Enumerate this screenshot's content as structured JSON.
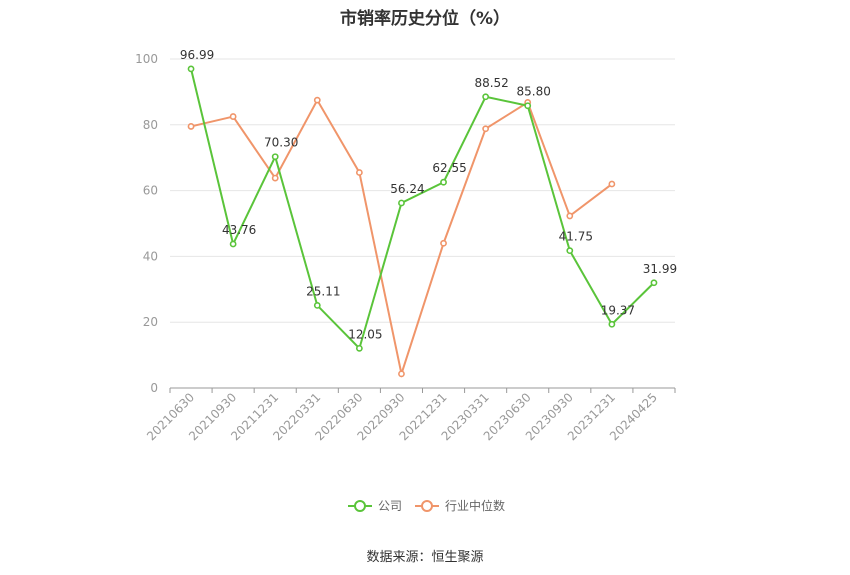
{
  "title": "市销率历史分位（%）",
  "source": "数据来源：恒生聚源",
  "chart_data": {
    "type": "line",
    "x": [
      "20210630",
      "20210930",
      "20211231",
      "20220331",
      "20220630",
      "20220930",
      "20221231",
      "20230331",
      "20230630",
      "20230930",
      "20231231",
      "20240425"
    ],
    "ylim": [
      0,
      100
    ],
    "yticks": [
      0,
      20,
      40,
      60,
      80,
      100
    ],
    "grid": true,
    "legend_position": "bottom-center",
    "series": [
      {
        "name": "公司",
        "color": "#5ac43a",
        "values": [
          96.99,
          43.76,
          70.3,
          25.11,
          12.05,
          56.24,
          62.55,
          88.52,
          85.8,
          41.75,
          19.37,
          31.99
        ],
        "labels": [
          "96.99",
          "43.76",
          "70.30",
          "25.11",
          "12.05",
          "56.24",
          "62.55",
          "88.52",
          "85.80",
          "41.75",
          "19.37",
          "31.99"
        ]
      },
      {
        "name": "行业中位数",
        "color": "#f0956a",
        "values": [
          79.5,
          82.5,
          63.8,
          87.5,
          65.5,
          4.3,
          44.0,
          78.8,
          86.8,
          52.3,
          62.0,
          null
        ]
      }
    ]
  }
}
